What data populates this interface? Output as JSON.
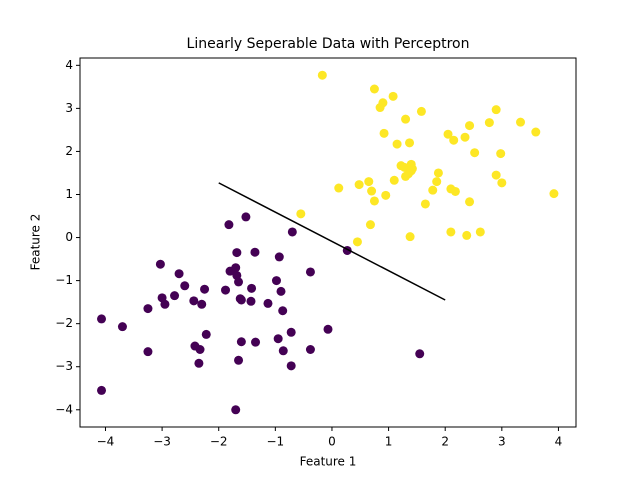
{
  "chart_data": {
    "type": "scatter",
    "title": "Linearly Seperable Data with Perceptron",
    "xlabel": "Feature 1",
    "ylabel": "Feature 2",
    "xlim": [
      -4.45,
      4.31
    ],
    "ylim": [
      -4.4,
      4.17
    ],
    "xticks": [
      {
        "value": -4,
        "label": "−4"
      },
      {
        "value": -3,
        "label": "−3"
      },
      {
        "value": -2,
        "label": "−2"
      },
      {
        "value": -1,
        "label": "−1"
      },
      0,
      1,
      2,
      3,
      4
    ],
    "yticks": [
      {
        "value": -4,
        "label": "−4"
      },
      {
        "value": -3,
        "label": "−3"
      },
      {
        "value": -2,
        "label": "−2"
      },
      {
        "value": -1,
        "label": "−1"
      },
      0,
      1,
      2,
      3,
      4
    ],
    "series": [
      {
        "color": "#440154",
        "x": [
          -4.07,
          -4.07,
          -3.7,
          -3.03,
          -2.7,
          -3.0,
          -2.95,
          -3.25,
          -2.78,
          -2.6,
          -2.44,
          -2.3,
          -2.25,
          -3.25,
          -2.42,
          -2.33,
          -2.35,
          -2.22,
          -1.82,
          -1.52,
          -1.8,
          -1.7,
          -1.68,
          -1.68,
          -1.65,
          -1.62,
          -1.6,
          -1.7,
          -1.88,
          -1.43,
          -1.42,
          -1.36,
          -1.6,
          -1.65,
          -1.35,
          -1.13,
          -0.98,
          -0.93,
          -0.9,
          -0.87,
          -0.95,
          -0.86,
          -0.7,
          -0.72,
          -0.72,
          -0.38,
          -0.38,
          -0.07,
          0.27,
          1.55
        ],
        "values": [
          -1.89,
          -3.55,
          -2.07,
          -0.62,
          -0.84,
          -1.4,
          -1.55,
          -1.65,
          -1.35,
          -1.12,
          -1.47,
          -1.55,
          -1.2,
          -2.65,
          -2.52,
          -2.6,
          -2.92,
          -2.25,
          0.3,
          0.48,
          -0.78,
          -0.7,
          -0.88,
          -0.35,
          -1.03,
          -1.42,
          -1.45,
          -4.0,
          -1.22,
          -1.48,
          -1.18,
          -0.34,
          -2.42,
          -2.85,
          -2.43,
          -1.53,
          -1.0,
          -0.45,
          -1.25,
          -1.7,
          -2.35,
          -2.63,
          0.13,
          -2.2,
          -2.98,
          -0.8,
          -2.6,
          -2.13,
          -0.3,
          -2.7
        ]
      },
      {
        "color": "#fde725",
        "x": [
          -0.17,
          0.75,
          1.08,
          0.9,
          0.85,
          1.58,
          2.9,
          1.3,
          2.43,
          2.78,
          3.33,
          3.6,
          0.92,
          2.05,
          2.35,
          2.15,
          1.37,
          1.15,
          2.52,
          2.98,
          1.22,
          1.28,
          1.4,
          1.42,
          1.35,
          1.4,
          1.3,
          1.88,
          1.1,
          1.85,
          0.65,
          0.48,
          0.12,
          0.7,
          2.1,
          2.18,
          1.78,
          0.95,
          0.75,
          2.9,
          3.0,
          3.92,
          2.43,
          1.65,
          -0.55,
          0.68,
          2.1,
          2.38,
          2.62,
          1.38,
          0.45
        ],
        "values": [
          3.77,
          3.45,
          3.28,
          3.13,
          3.02,
          2.93,
          2.97,
          2.75,
          2.6,
          2.67,
          2.68,
          2.45,
          2.42,
          2.4,
          2.33,
          2.26,
          2.2,
          2.17,
          1.97,
          1.95,
          1.67,
          1.63,
          1.7,
          1.6,
          1.48,
          1.55,
          1.42,
          1.5,
          1.33,
          1.3,
          1.3,
          1.23,
          1.15,
          1.08,
          1.13,
          1.07,
          1.1,
          0.98,
          0.85,
          1.45,
          1.27,
          1.02,
          0.83,
          0.78,
          0.55,
          0.3,
          0.13,
          0.05,
          0.13,
          0.02,
          -0.1
        ]
      }
    ],
    "line": {
      "color": "#000000",
      "x": [
        -2,
        2
      ],
      "values": [
        1.27,
        -1.45
      ]
    }
  }
}
